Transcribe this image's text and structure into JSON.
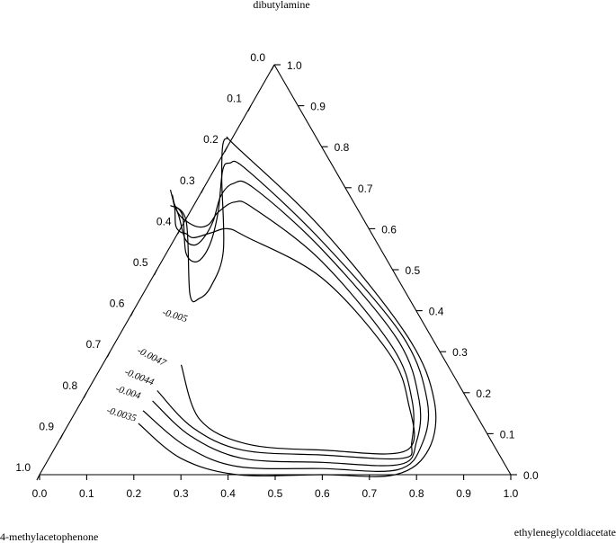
{
  "chart_data": {
    "type": "ternary-contour",
    "title": "",
    "axes": {
      "top": {
        "label": "dibutylamine"
      },
      "bottom_left": {
        "label": "4-methylacetophenone"
      },
      "bottom_right": {
        "label": "ethyleneglycoldiacetate"
      }
    },
    "left_ticks": [
      "0.0",
      "0.1",
      "0.2",
      "0.3",
      "0.4",
      "0.5",
      "0.6",
      "0.7",
      "0.8",
      "0.9",
      "1.0"
    ],
    "right_ticks": [
      "1.0",
      "0.9",
      "0.8",
      "0.7",
      "0.6",
      "0.5",
      "0.4",
      "0.3",
      "0.2",
      "0.1",
      "0.0"
    ],
    "bottom_ticks": [
      "0.0",
      "0.1",
      "0.2",
      "0.3",
      "0.4",
      "0.5",
      "0.6",
      "0.7",
      "0.8",
      "0.9",
      "1.0"
    ],
    "contour_labels": [
      "-0.005",
      "-0.0047",
      "-0.0044",
      "-0.004",
      "-0.0035"
    ],
    "contours": [
      {
        "level": "-0.0035",
        "points": [
          [
            0.21,
            0.125
          ],
          [
            0.3,
            0.04
          ],
          [
            0.42,
            0.0
          ],
          [
            0.6,
            0.0
          ],
          [
            0.755,
            0.0
          ],
          [
            0.826,
            0.062
          ],
          [
            0.838,
            0.18
          ],
          [
            0.78,
            0.34
          ],
          [
            0.6,
            0.6
          ],
          [
            0.419,
            0.8
          ],
          [
            0.4,
            0.82
          ],
          [
            0.39,
            0.802
          ],
          [
            0.388,
            0.72
          ],
          [
            0.391,
            0.545
          ],
          [
            0.365,
            0.46
          ],
          [
            0.34,
            0.43
          ],
          [
            0.32,
            0.44
          ],
          [
            0.312,
            0.62
          ],
          [
            0.279,
            0.657
          ]
        ]
      },
      {
        "level": "-0.004",
        "points": [
          [
            0.22,
            0.156
          ],
          [
            0.31,
            0.07
          ],
          [
            0.42,
            0.02
          ],
          [
            0.6,
            0.015
          ],
          [
            0.76,
            0.012
          ],
          [
            0.812,
            0.075
          ],
          [
            0.823,
            0.18
          ],
          [
            0.77,
            0.34
          ],
          [
            0.6,
            0.57
          ],
          [
            0.44,
            0.745
          ],
          [
            0.405,
            0.76
          ],
          [
            0.39,
            0.742
          ],
          [
            0.38,
            0.64
          ],
          [
            0.362,
            0.56
          ],
          [
            0.336,
            0.52
          ],
          [
            0.312,
            0.54
          ],
          [
            0.305,
            0.63
          ],
          [
            0.287,
            0.657
          ]
        ]
      },
      {
        "level": "-0.0044",
        "points": [
          [
            0.24,
            0.18
          ],
          [
            0.32,
            0.095
          ],
          [
            0.43,
            0.04
          ],
          [
            0.6,
            0.03
          ],
          [
            0.765,
            0.025
          ],
          [
            0.8,
            0.08
          ],
          [
            0.806,
            0.18
          ],
          [
            0.76,
            0.33
          ],
          [
            0.6,
            0.55
          ],
          [
            0.455,
            0.7
          ],
          [
            0.412,
            0.71
          ],
          [
            0.386,
            0.68
          ],
          [
            0.37,
            0.62
          ],
          [
            0.351,
            0.58
          ],
          [
            0.33,
            0.56
          ],
          [
            0.31,
            0.575
          ],
          [
            0.297,
            0.63
          ],
          [
            0.285,
            0.667
          ]
        ]
      },
      {
        "level": "-0.0047",
        "points": [
          [
            0.25,
            0.205
          ],
          [
            0.325,
            0.115
          ],
          [
            0.43,
            0.06
          ],
          [
            0.6,
            0.048
          ],
          [
            0.77,
            0.04
          ],
          [
            0.79,
            0.08
          ],
          [
            0.791,
            0.18
          ],
          [
            0.75,
            0.31
          ],
          [
            0.6,
            0.52
          ],
          [
            0.455,
            0.65
          ],
          [
            0.415,
            0.665
          ],
          [
            0.38,
            0.64
          ],
          [
            0.36,
            0.61
          ],
          [
            0.335,
            0.605
          ],
          [
            0.305,
            0.625
          ],
          [
            0.29,
            0.65
          ],
          [
            0.283,
            0.683
          ]
        ]
      },
      {
        "level": "-0.005",
        "points": [
          [
            0.301,
            0.268
          ],
          [
            0.34,
            0.135
          ],
          [
            0.44,
            0.075
          ],
          [
            0.6,
            0.06
          ],
          [
            0.78,
            0.06
          ],
          [
            0.782,
            0.18
          ],
          [
            0.74,
            0.3
          ],
          [
            0.6,
            0.48
          ],
          [
            0.44,
            0.58
          ],
          [
            0.4,
            0.6
          ],
          [
            0.365,
            0.59
          ],
          [
            0.328,
            0.578
          ],
          [
            0.312,
            0.588
          ],
          [
            0.3,
            0.592
          ],
          [
            0.29,
            0.608
          ],
          [
            0.288,
            0.65
          ],
          [
            0.279,
            0.695
          ]
        ]
      }
    ]
  }
}
